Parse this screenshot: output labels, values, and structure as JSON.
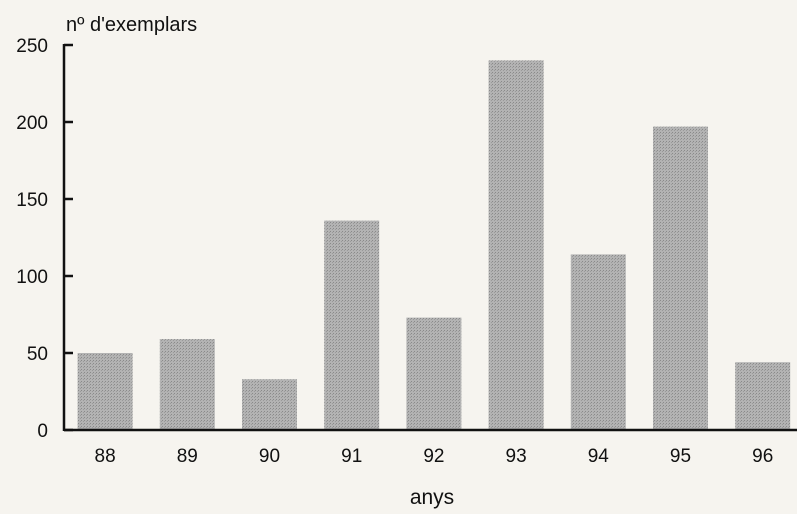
{
  "chart_data": {
    "type": "bar",
    "title": "",
    "ylabel": "nº d'exemplars",
    "xlabel": "anys",
    "categories": [
      "88",
      "89",
      "90",
      "91",
      "92",
      "93",
      "94",
      "95",
      "96"
    ],
    "values": [
      50,
      59,
      33,
      136,
      73,
      240,
      114,
      197,
      44
    ],
    "ylim": [
      0,
      250
    ],
    "yticks": [
      0,
      50,
      100,
      150,
      200,
      250
    ],
    "grid": false,
    "legend": "none",
    "colors": {
      "bar": "#a9a9a9",
      "axis": "#111111",
      "background": "#f6f4ef"
    }
  }
}
